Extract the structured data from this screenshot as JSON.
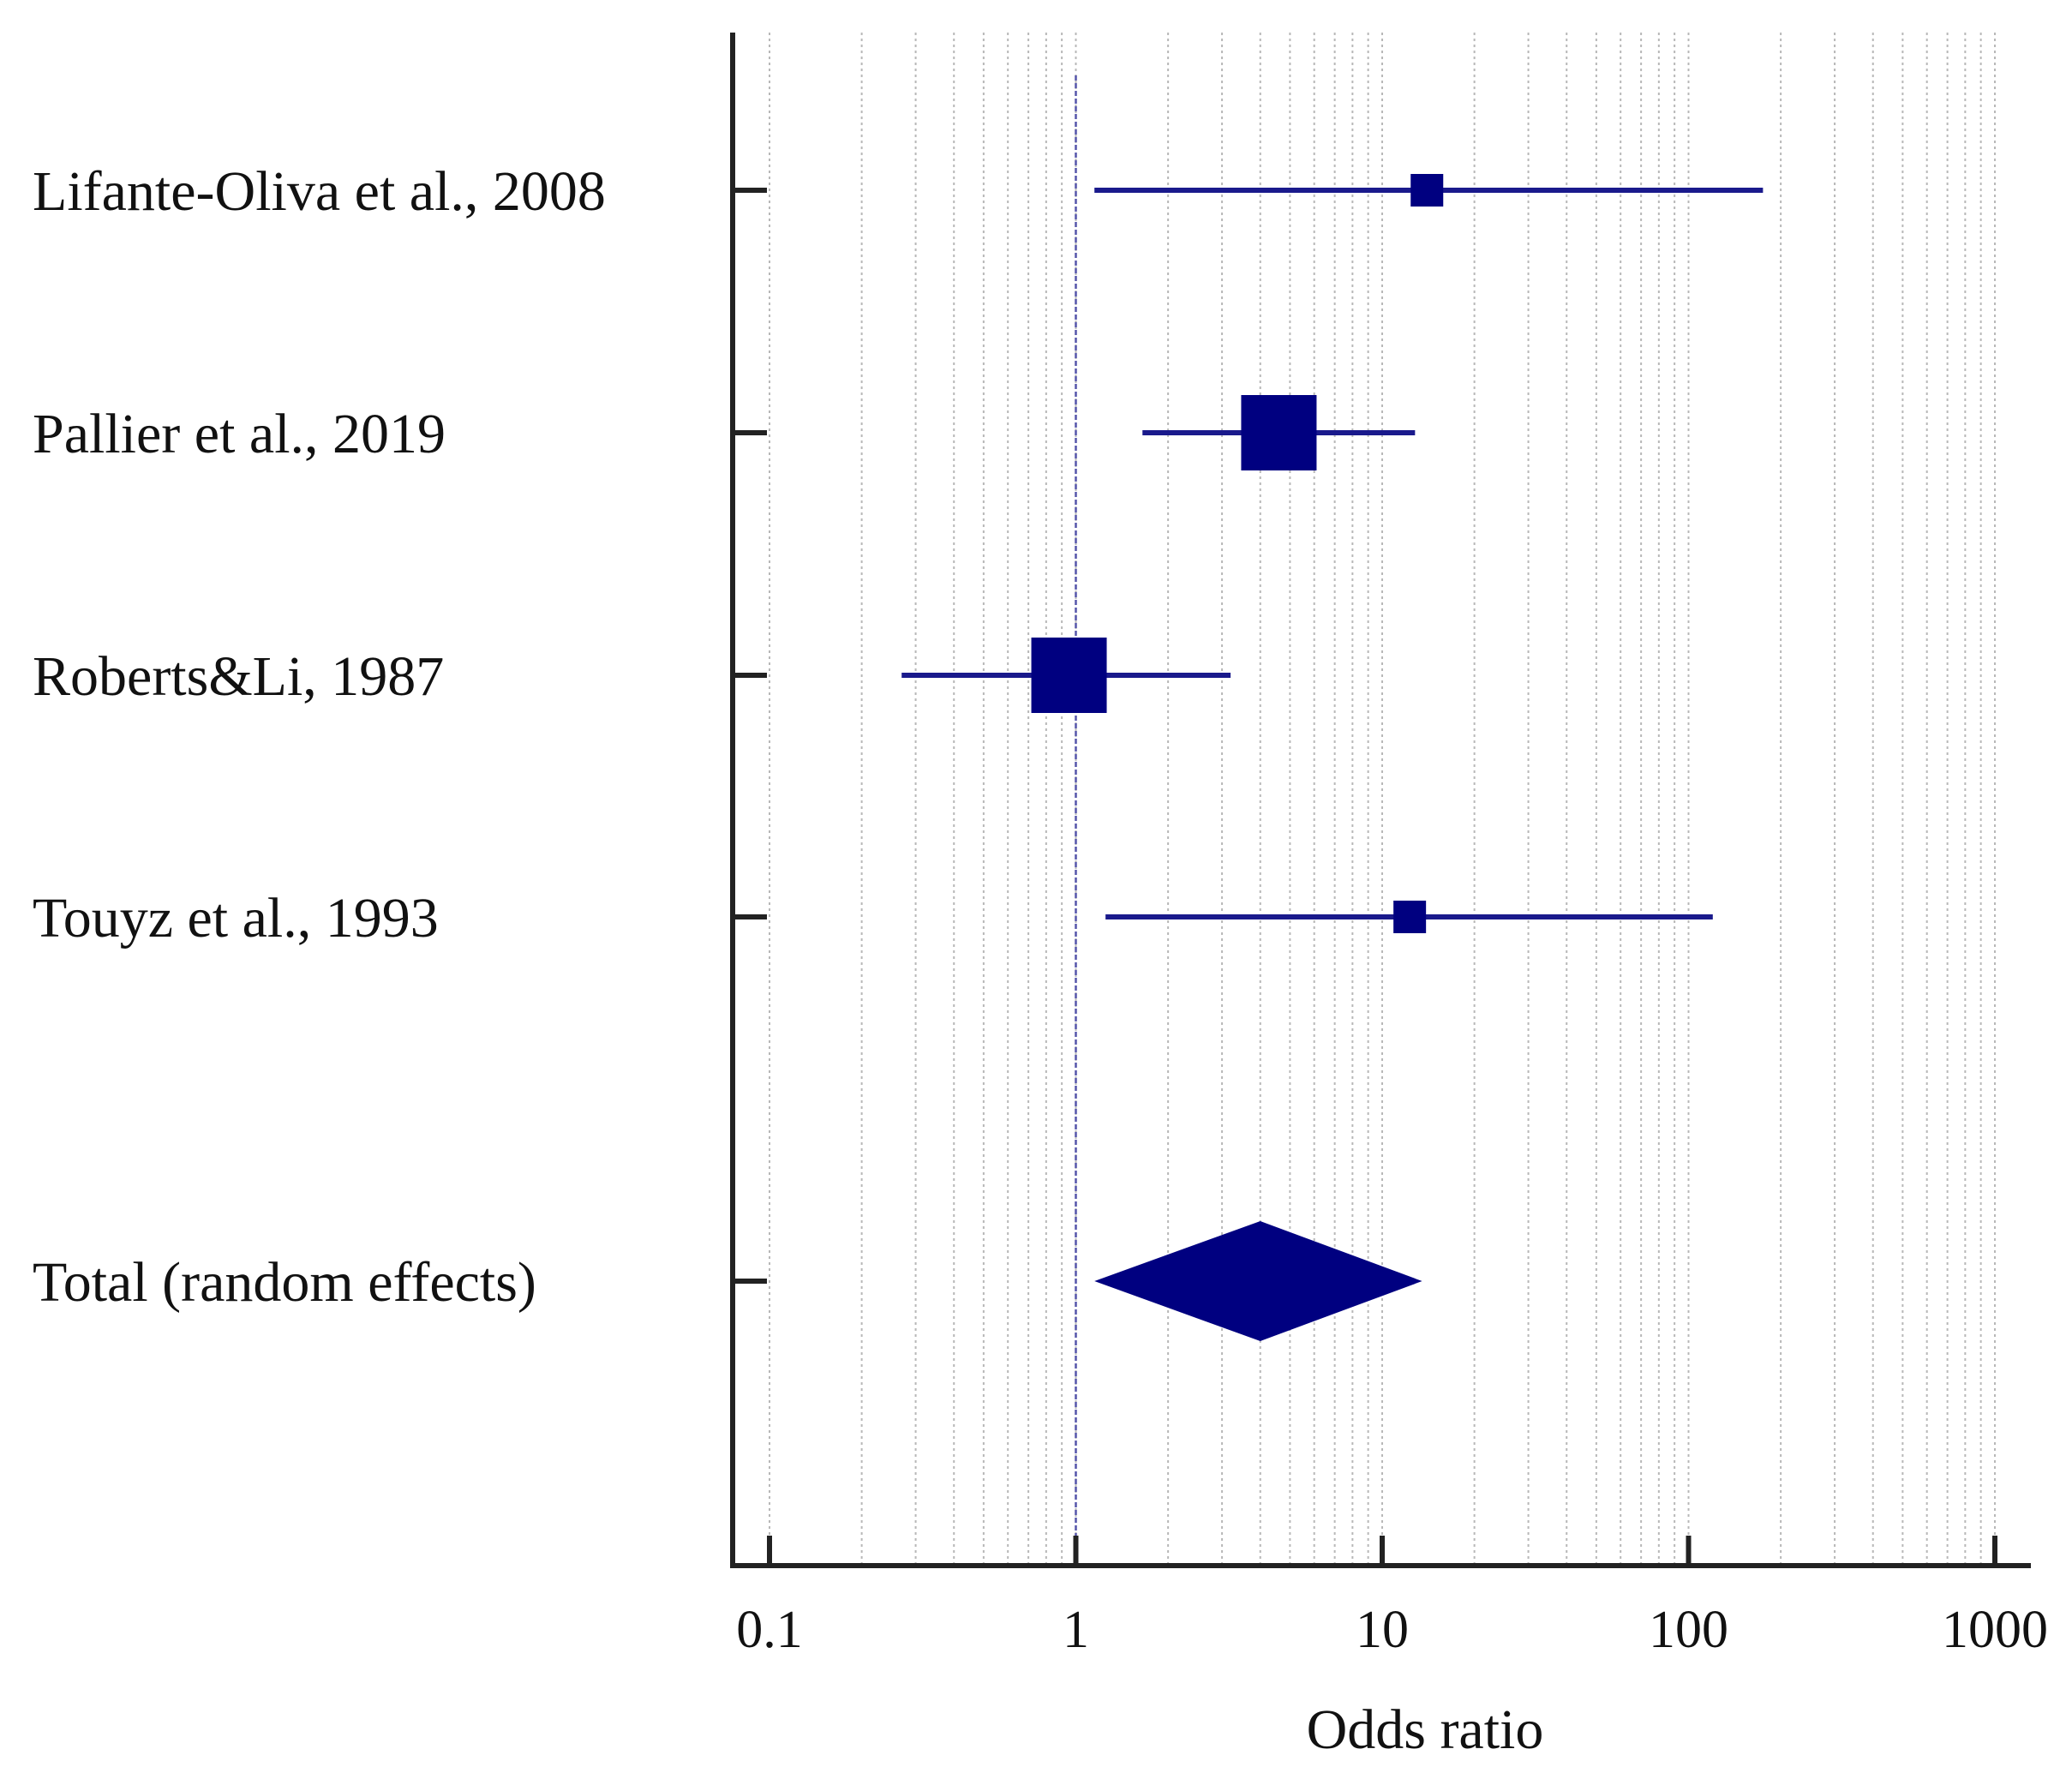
{
  "chart_data": {
    "type": "forest",
    "scale": "log",
    "xlabel": "Odds ratio",
    "xlim": [
      0.1,
      1000
    ],
    "ticks": [
      {
        "value": 0.1,
        "label": "0.1"
      },
      {
        "value": 1,
        "label": "1"
      },
      {
        "value": 10,
        "label": "10"
      },
      {
        "value": 100,
        "label": "100"
      },
      {
        "value": 1000,
        "label": "1000"
      }
    ],
    "reference_line": 1,
    "grid": true,
    "studies": [
      {
        "label": "Lifante-Oliva et al., 2008",
        "or": 14,
        "ci_low": 1.15,
        "ci_high": 175,
        "weight": "small"
      },
      {
        "label": "Pallier et al., 2019",
        "or": 4.6,
        "ci_low": 1.65,
        "ci_high": 12.8,
        "weight": "large"
      },
      {
        "label": "Roberts&Li, 1987",
        "or": 0.95,
        "ci_low": 0.27,
        "ci_high": 3.2,
        "weight": "large"
      },
      {
        "label": "Touyz et al., 1993",
        "or": 12.3,
        "ci_low": 1.25,
        "ci_high": 120,
        "weight": "small"
      }
    ],
    "total": {
      "label": "Total (random effects)",
      "or": 4.0,
      "ci_low": 1.15,
      "ci_high": 13.5
    },
    "colors": {
      "marker": "#000080",
      "ci_line": "#1a1a8c",
      "axis": "#222222",
      "grid": "#b8b8b8",
      "reference": "#5555aa"
    }
  }
}
